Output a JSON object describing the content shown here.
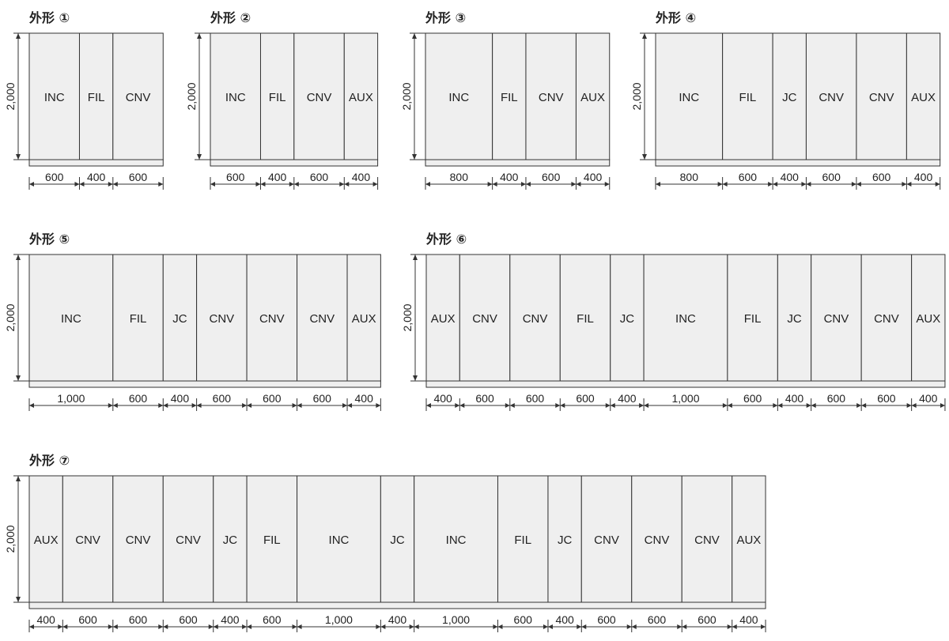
{
  "height_label": "2,000",
  "layouts": [
    {
      "title": "外形 ①",
      "units": [
        {
          "type": "INC",
          "width": 600
        },
        {
          "type": "FIL",
          "width": 400
        },
        {
          "type": "CNV",
          "width": 600
        }
      ]
    },
    {
      "title": "外形 ②",
      "units": [
        {
          "type": "INC",
          "width": 600
        },
        {
          "type": "FIL",
          "width": 400
        },
        {
          "type": "CNV",
          "width": 600
        },
        {
          "type": "AUX",
          "width": 400
        }
      ]
    },
    {
      "title": "外形 ③",
      "units": [
        {
          "type": "INC",
          "width": 800
        },
        {
          "type": "FIL",
          "width": 400
        },
        {
          "type": "CNV",
          "width": 600
        },
        {
          "type": "AUX",
          "width": 400
        }
      ]
    },
    {
      "title": "外形 ④",
      "units": [
        {
          "type": "INC",
          "width": 800
        },
        {
          "type": "FIL",
          "width": 600
        },
        {
          "type": "JC",
          "width": 400
        },
        {
          "type": "CNV",
          "width": 600
        },
        {
          "type": "CNV",
          "width": 600
        },
        {
          "type": "AUX",
          "width": 400
        }
      ]
    },
    {
      "title": "外形 ⑤",
      "units": [
        {
          "type": "INC",
          "width": 1000
        },
        {
          "type": "FIL",
          "width": 600
        },
        {
          "type": "JC",
          "width": 400
        },
        {
          "type": "CNV",
          "width": 600
        },
        {
          "type": "CNV",
          "width": 600
        },
        {
          "type": "CNV",
          "width": 600
        },
        {
          "type": "AUX",
          "width": 400
        }
      ]
    },
    {
      "title": "外形 ⑥",
      "units": [
        {
          "type": "AUX",
          "width": 400
        },
        {
          "type": "CNV",
          "width": 600
        },
        {
          "type": "CNV",
          "width": 600
        },
        {
          "type": "FIL",
          "width": 600
        },
        {
          "type": "JC",
          "width": 400
        },
        {
          "type": "INC",
          "width": 1000
        },
        {
          "type": "FIL",
          "width": 600
        },
        {
          "type": "JC",
          "width": 400
        },
        {
          "type": "CNV",
          "width": 600
        },
        {
          "type": "CNV",
          "width": 600
        },
        {
          "type": "AUX",
          "width": 400
        }
      ]
    },
    {
      "title": "外形 ⑦",
      "units": [
        {
          "type": "AUX",
          "width": 400
        },
        {
          "type": "CNV",
          "width": 600
        },
        {
          "type": "CNV",
          "width": 600
        },
        {
          "type": "CNV",
          "width": 600
        },
        {
          "type": "JC",
          "width": 400
        },
        {
          "type": "FIL",
          "width": 600
        },
        {
          "type": "INC",
          "width": 1000
        },
        {
          "type": "JC",
          "width": 400
        },
        {
          "type": "INC",
          "width": 1000
        },
        {
          "type": "FIL",
          "width": 600
        },
        {
          "type": "JC",
          "width": 400
        },
        {
          "type": "CNV",
          "width": 600
        },
        {
          "type": "CNV",
          "width": 600
        },
        {
          "type": "CNV",
          "width": 600
        },
        {
          "type": "AUX",
          "width": 400
        }
      ]
    }
  ]
}
